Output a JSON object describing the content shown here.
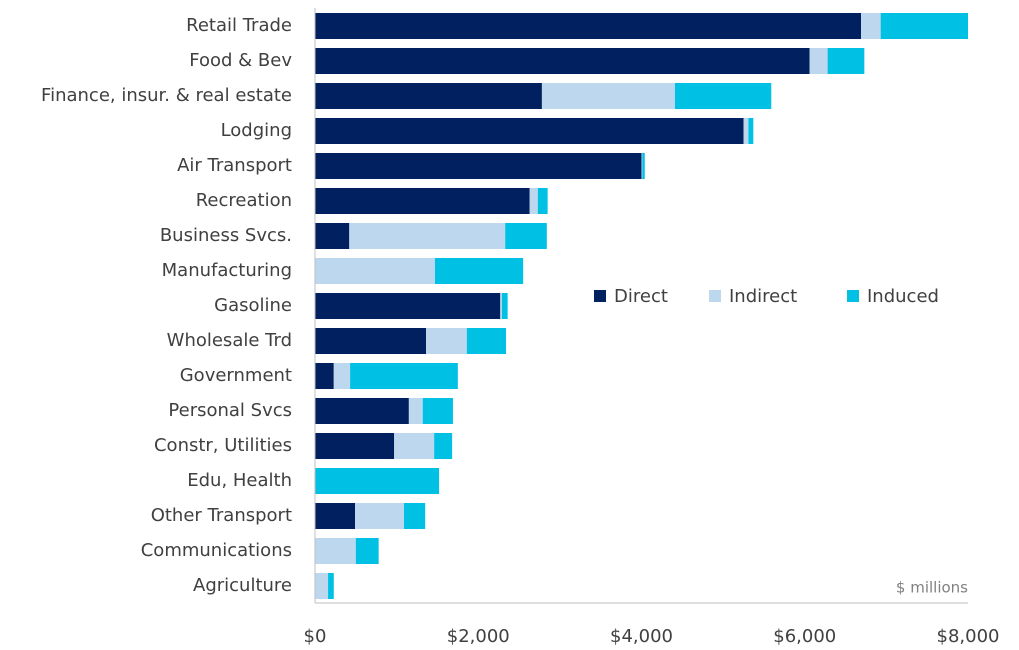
{
  "chart_data": {
    "type": "stacked_barh",
    "categories": [
      "Retail Trade",
      "Food & Bev",
      "Finance, insur. & real estate",
      "Lodging",
      "Air Transport",
      "Recreation",
      "Business Svcs.",
      "Manufacturing",
      "Gasoline",
      "Wholesale Trd",
      "Government",
      "Personal Svcs",
      "Constr, Utilities",
      "Edu, Health",
      "Other Transport",
      "Communications",
      "Agriculture"
    ],
    "series": [
      {
        "name": "Direct",
        "color": "#002060",
        "values": [
          6690,
          6060,
          2780,
          5250,
          4000,
          2630,
          420,
          0,
          2270,
          1360,
          230,
          1150,
          970,
          0,
          490,
          0,
          0
        ]
      },
      {
        "name": "Indirect",
        "color": "#bdd7ee",
        "values": [
          240,
          220,
          1630,
          60,
          10,
          100,
          1910,
          1470,
          20,
          500,
          200,
          170,
          490,
          0,
          600,
          500,
          160
        ]
      },
      {
        "name": "Induced",
        "color": "#00c1e3",
        "values": [
          1070,
          450,
          1180,
          60,
          30,
          120,
          510,
          1080,
          70,
          480,
          1320,
          370,
          220,
          1520,
          260,
          280,
          70
        ]
      }
    ],
    "xlim": [
      0,
      8000
    ],
    "xticks": [
      {
        "value": 0,
        "label": "$0"
      },
      {
        "value": 2000,
        "label": "$2,000"
      },
      {
        "value": 4000,
        "label": "$4,000"
      },
      {
        "value": 6000,
        "label": "$6,000"
      },
      {
        "value": 8000,
        "label": "$8,000"
      }
    ],
    "annotation": "$ millions",
    "legend": "right"
  }
}
